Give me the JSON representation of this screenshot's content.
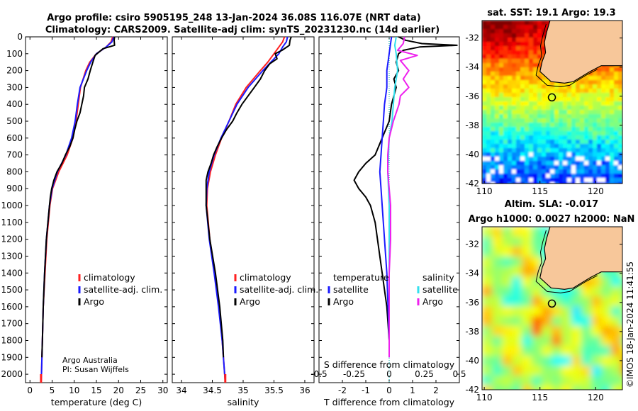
{
  "header": {
    "line1": "Argo profile: csiro 5905195_248 13-Jan-2024 36.08S 116.07E (NRT data)",
    "line2": "Climatology: CARS2009. Satellite-adj clim: synTS_20231230.nc (14d earlier)"
  },
  "depth_axis": {
    "ticks": [
      0,
      100,
      200,
      300,
      400,
      500,
      600,
      700,
      800,
      900,
      1000,
      1100,
      1200,
      1300,
      1400,
      1500,
      1600,
      1700,
      1800,
      1900,
      2000
    ],
    "ylim": [
      0,
      2050
    ]
  },
  "colors": {
    "climatology": "#ff2020",
    "satellite": "#1a1aff",
    "argo": "#000000",
    "sat_temp_diff": "#1a1aff",
    "sat_sal_diff": "#33e0ee",
    "argo_sal_diff": "#ee20ee",
    "land": "#f7c79a",
    "zero_line": "#00aaaa"
  },
  "chart_data": [
    {
      "type": "line",
      "name": "temperature-profile",
      "xlabel": "temperature (deg C)",
      "xlim": [
        -1,
        31
      ],
      "xticks": [
        0,
        5,
        10,
        15,
        20,
        25,
        30
      ],
      "legend": [
        "climatology",
        "satellite-adj. clim.",
        "Argo"
      ],
      "legend_placement": "lower-right",
      "series": [
        {
          "name": "climatology",
          "depth": [
            0,
            30,
            60,
            100,
            150,
            200,
            300,
            400,
            500,
            600,
            700,
            800,
            900,
            1000,
            1200,
            1400,
            1600,
            1800,
            2000,
            2050
          ],
          "values": [
            18.7,
            18.3,
            17.2,
            15.0,
            13.5,
            12.6,
            11.4,
            10.9,
            10.4,
            9.7,
            8.4,
            6.5,
            5.1,
            4.5,
            3.8,
            3.4,
            3.0,
            2.8,
            2.6,
            2.5
          ]
        },
        {
          "name": "satellite-adj. clim.",
          "depth": [
            0,
            30,
            60,
            100,
            150,
            200,
            300,
            400,
            500,
            600,
            700,
            800,
            900,
            1000,
            1200,
            1400,
            1600,
            1800,
            2000,
            2050
          ],
          "values": [
            18.9,
            18.5,
            17.2,
            15.0,
            13.7,
            12.8,
            11.3,
            10.7,
            10.2,
            9.4,
            8.1,
            6.2,
            5.0,
            4.4,
            3.7,
            3.3,
            3.0,
            2.8,
            2.6,
            2.5
          ]
        },
        {
          "name": "Argo",
          "depth": [
            0,
            20,
            50,
            70,
            90,
            110,
            150,
            200,
            250,
            300,
            350,
            400,
            450,
            500,
            550,
            600,
            650,
            700,
            750,
            800,
            850,
            900,
            950,
            1000,
            1200,
            1400,
            1600,
            1800,
            1900
          ],
          "values": [
            19.1,
            19.0,
            19.1,
            16.5,
            15.6,
            14.7,
            14.2,
            13.6,
            13.1,
            12.3,
            12.1,
            11.7,
            11.3,
            10.6,
            10.1,
            9.7,
            9.0,
            8.0,
            7.2,
            6.1,
            5.4,
            4.9,
            4.6,
            4.4,
            3.7,
            3.3,
            3.0,
            2.8,
            2.7
          ]
        }
      ],
      "annotations": [
        "Argo Australia",
        "PI: Susan Wijffels"
      ]
    },
    {
      "type": "line",
      "name": "salinity-profile",
      "xlabel": "salinity",
      "xlim": [
        33.85,
        36.15
      ],
      "xticks": [
        34,
        34.5,
        35,
        35.5,
        36
      ],
      "xticklabels": [
        "34",
        "34.5",
        "35",
        "35.5",
        "36"
      ],
      "legend": [
        "climatology",
        "satellite-adj. clim.",
        "Argo"
      ],
      "legend_placement": "lower-right",
      "series": [
        {
          "name": "climatology",
          "depth": [
            0,
            30,
            60,
            100,
            150,
            200,
            300,
            400,
            500,
            600,
            700,
            800,
            900,
            1000,
            1200,
            1400,
            1600,
            1800,
            2000,
            2050
          ],
          "values": [
            35.67,
            35.64,
            35.58,
            35.5,
            35.4,
            35.28,
            35.05,
            34.88,
            34.77,
            34.65,
            34.55,
            34.47,
            34.42,
            34.41,
            34.46,
            34.54,
            34.61,
            34.66,
            34.7,
            34.71
          ]
        },
        {
          "name": "satellite-adj. clim.",
          "depth": [
            0,
            30,
            60,
            100,
            150,
            200,
            300,
            400,
            500,
            600,
            700,
            800,
            900,
            1000,
            1200,
            1400,
            1600,
            1800,
            2000,
            2050
          ],
          "values": [
            35.72,
            35.7,
            35.64,
            35.58,
            35.45,
            35.32,
            35.08,
            34.9,
            34.77,
            34.64,
            34.53,
            34.45,
            34.41,
            34.4,
            34.45,
            34.53,
            34.6,
            34.66,
            34.7,
            34.71
          ]
        },
        {
          "name": "Argo",
          "depth": [
            0,
            20,
            50,
            80,
            100,
            130,
            160,
            200,
            250,
            300,
            350,
            400,
            450,
            500,
            550,
            600,
            650,
            700,
            750,
            800,
            850,
            900,
            950,
            1000,
            1200,
            1400,
            1600,
            1800,
            1900
          ],
          "values": [
            35.78,
            35.76,
            35.75,
            35.63,
            35.52,
            35.55,
            35.43,
            35.35,
            35.28,
            35.18,
            35.08,
            34.98,
            34.9,
            34.83,
            34.73,
            34.65,
            34.58,
            34.52,
            34.48,
            34.43,
            34.4,
            34.4,
            34.4,
            34.4,
            34.46,
            34.55,
            34.62,
            34.67,
            34.68
          ]
        }
      ]
    },
    {
      "type": "line",
      "name": "difference-profile",
      "xlabel": "T difference from climatology",
      "xlabel_top": "S difference from climatology",
      "xlim": [
        -3,
        3
      ],
      "xticks": [
        -2,
        -1,
        0,
        1,
        2
      ],
      "xticklabels": [
        "-2",
        "-1",
        "0",
        "1",
        "2"
      ],
      "s_ticks": [
        -0.5,
        -0.25,
        0,
        0.25,
        0.5
      ],
      "s_ticklabels": [
        "-0.5",
        "-0.25",
        "0",
        "0.25",
        "0.5"
      ],
      "legend_headers": [
        "temperature",
        "salinity"
      ],
      "legend": [
        "satellite",
        "Argo",
        "satellite",
        "Argo"
      ],
      "series": [
        {
          "name": "Argo T diff",
          "depth": [
            0,
            20,
            40,
            50,
            60,
            80,
            100,
            150,
            200,
            250,
            300,
            400,
            500,
            600,
            700,
            750,
            800,
            850,
            900,
            950,
            1000,
            1100,
            1200,
            1300,
            1400,
            1500,
            1600,
            1700,
            1800,
            1900
          ],
          "values": [
            0.4,
            0.7,
            1.4,
            2.9,
            1.3,
            0.6,
            0.4,
            0.3,
            0.4,
            0.2,
            0.3,
            0.1,
            0.0,
            -0.3,
            -0.6,
            -1.0,
            -1.3,
            -1.5,
            -1.3,
            -1.0,
            -0.8,
            -0.6,
            -0.5,
            -0.4,
            -0.3,
            -0.2,
            -0.1,
            -0.05,
            0.0,
            0.0
          ]
        },
        {
          "name": "satellite T diff",
          "depth": [
            0,
            100,
            200,
            300,
            400,
            500,
            600,
            700,
            800,
            900,
            1000,
            1200,
            1400,
            1600,
            1800,
            1900
          ],
          "values": [
            0.1,
            0.0,
            -0.1,
            -0.1,
            -0.2,
            -0.25,
            -0.3,
            -0.35,
            -0.4,
            -0.35,
            -0.3,
            -0.2,
            -0.1,
            -0.05,
            0.0,
            0.0
          ]
        },
        {
          "name": "satellite S diff",
          "depth": [
            0,
            50,
            100,
            200,
            300,
            400,
            500,
            600,
            800,
            1000,
            1200,
            1400,
            1600,
            1800,
            1900
          ],
          "values": [
            0.05,
            0.04,
            0.05,
            0.06,
            0.04,
            0.03,
            0.02,
            0.0,
            -0.01,
            0.0,
            0.0,
            0.0,
            0.0,
            0.0,
            0.0
          ]
        },
        {
          "name": "Argo S diff",
          "depth": [
            0,
            40,
            80,
            110,
            140,
            200,
            250,
            300,
            350,
            400,
            500,
            600,
            700,
            800,
            900,
            1000,
            1200,
            1400,
            1600,
            1800,
            1900
          ],
          "values": [
            0.11,
            0.1,
            0.06,
            0.2,
            0.08,
            0.14,
            0.1,
            0.14,
            0.08,
            0.07,
            0.03,
            0.0,
            -0.01,
            -0.01,
            0.0,
            0.01,
            0.01,
            0.0,
            0.0,
            0.0,
            0.0
          ]
        }
      ]
    },
    {
      "type": "heatmap",
      "name": "sst-map",
      "title": "sat. SST: 19.1 Argo: 19.3",
      "xticks": [
        110,
        115,
        120
      ],
      "yticks": [
        -32,
        -34,
        -36,
        -38,
        -40,
        -42
      ],
      "xlim": [
        109.8,
        122.4
      ],
      "ylim": [
        -42,
        -30.8
      ],
      "float_lon": 116.07,
      "float_lat": -36.08
    },
    {
      "type": "heatmap",
      "name": "sla-map",
      "title": "Altim. SLA: -0.017",
      "subtitle": "Argo h1000: 0.0027 h2000: NaN",
      "xticks": [
        110,
        115,
        120
      ],
      "yticks": [
        -32,
        -34,
        -36,
        -38,
        -40,
        -42
      ],
      "xlim": [
        109.8,
        122.4
      ],
      "ylim": [
        -42,
        -30.8
      ],
      "float_lon": 116.07,
      "float_lat": -36.08
    }
  ],
  "footer": {
    "stamp": "©IMOS 18-Jan-2024 11:41:55"
  }
}
